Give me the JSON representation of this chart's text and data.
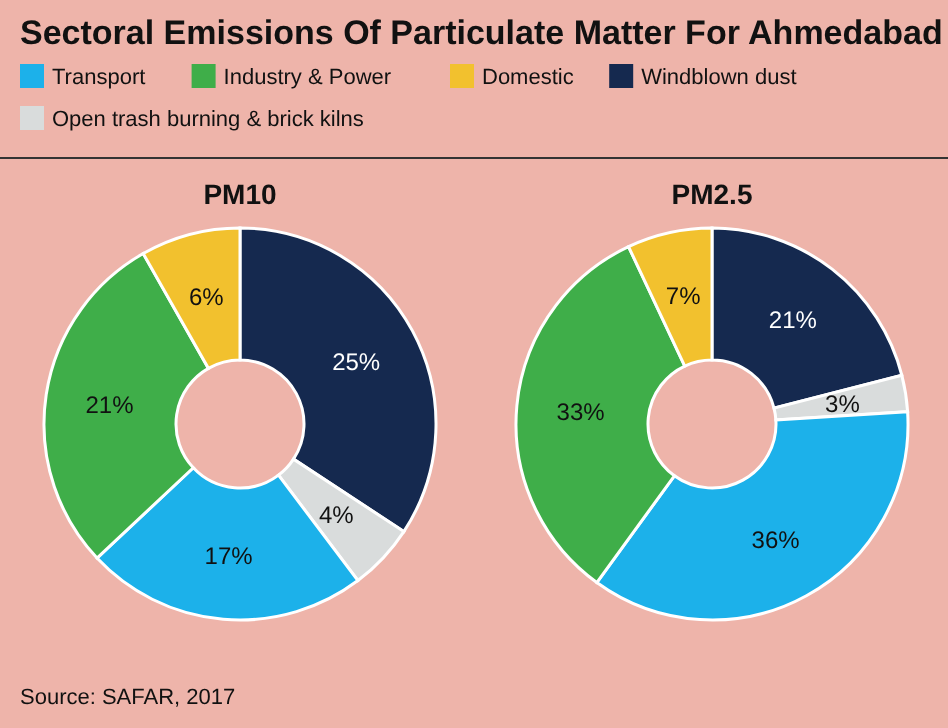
{
  "chart_data": [
    {
      "type": "donut",
      "title": "Sectoral Emissions Of Particulate Matter For Ahmedabad",
      "subtitle": "PM10",
      "categories": [
        "Windblown dust",
        "Open trash burning & brick kilns",
        "Transport",
        "Industry & Power",
        "Domestic"
      ],
      "values": [
        25,
        4,
        17,
        21,
        6
      ],
      "value_labels": [
        "25%",
        "4%",
        "17%",
        "21%",
        "6%"
      ],
      "colors": [
        "#15294f",
        "#d9dcdc",
        "#1cb1ea",
        "#3fae49",
        "#f2c12e"
      ],
      "legend": "top",
      "annotations": [
        "Source: SAFAR, 2017"
      ]
    },
    {
      "type": "donut",
      "subtitle": "PM2.5",
      "categories": [
        null,
        null,
        null,
        null,
        null
      ],
      "values": [
        21,
        3,
        36,
        33,
        7
      ],
      "value_labels": [
        "21%",
        "3%",
        "36%",
        "33%",
        "7%"
      ],
      "colors": [
        "#15294f",
        "#d9dcdc",
        "#1cb1ea",
        "#3fae49",
        "#f2c12e"
      ]
    }
  ]
}
